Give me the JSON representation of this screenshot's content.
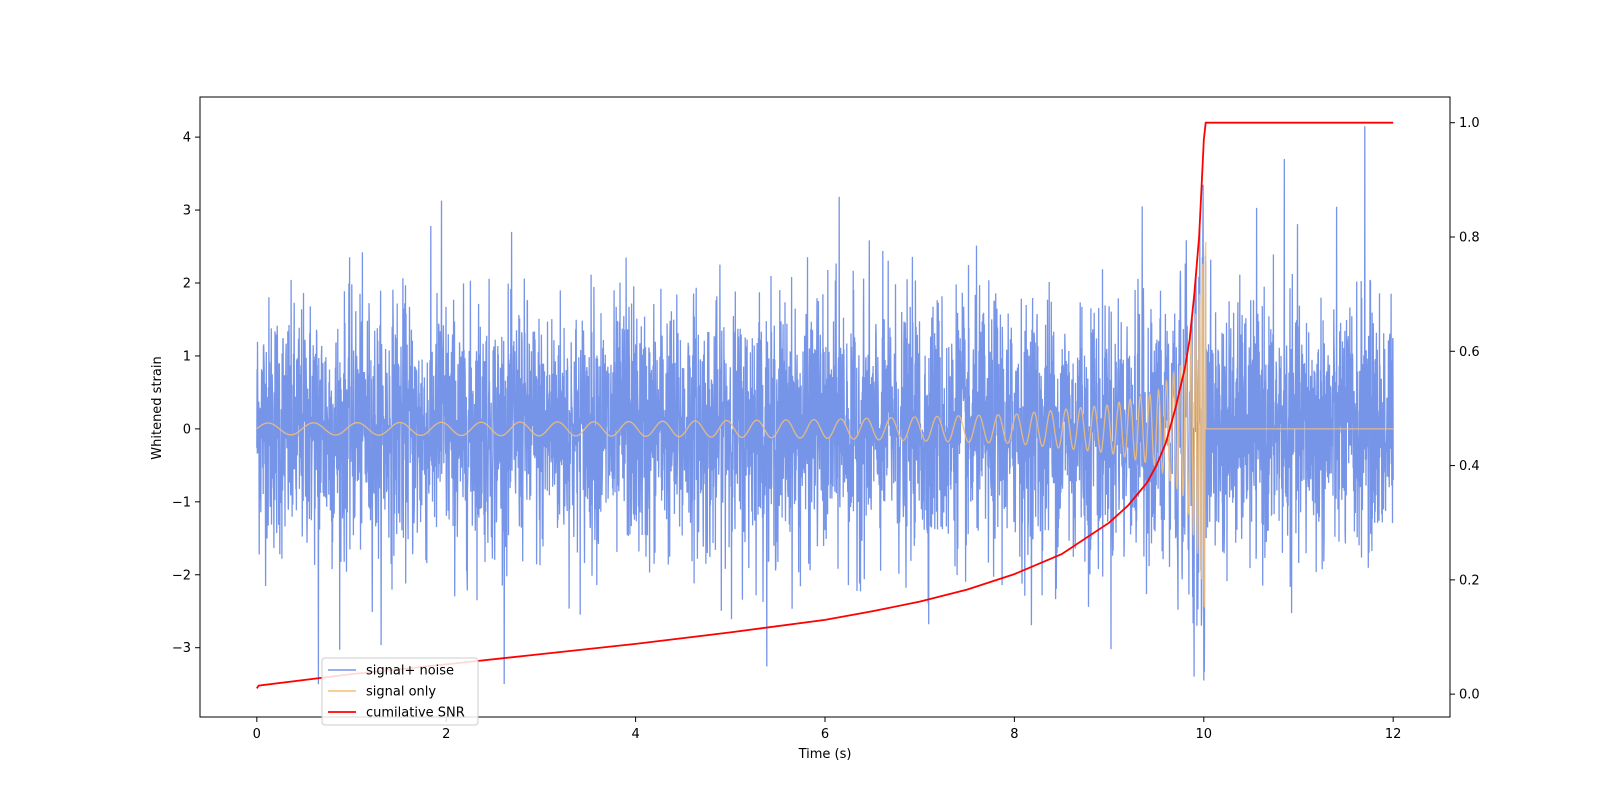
{
  "chart_data": {
    "type": "line",
    "title": "",
    "xlabel": "Time (s)",
    "ylabel": "Whitened strain",
    "y2label": "",
    "xlim": [
      -0.6,
      12.6
    ],
    "ylim": [
      -3.95,
      4.55
    ],
    "y2lim": [
      -0.04,
      1.045
    ],
    "x_ticks": [
      0,
      2,
      4,
      6,
      8,
      10,
      12
    ],
    "y_ticks": [
      -3,
      -2,
      -1,
      0,
      1,
      2,
      3,
      4
    ],
    "y2_ticks": [
      0.0,
      0.2,
      0.4,
      0.6,
      0.8,
      1.0
    ],
    "x_tick_labels": [
      "0",
      "2",
      "4",
      "6",
      "8",
      "10",
      "12"
    ],
    "y_tick_labels": [
      "−3",
      "−2",
      "−1",
      "0",
      "1",
      "2",
      "3",
      "4"
    ],
    "y2_tick_labels": [
      "0.0",
      "0.2",
      "0.4",
      "0.6",
      "0.8",
      "1.0"
    ],
    "grid": false,
    "legend_position": "lower-left",
    "duration_s": 12,
    "merger_time_s": 10.02,
    "series": [
      {
        "name": "signal+ noise",
        "axis": "left",
        "color": "#7795e8",
        "noise_std": 0.85,
        "approx_range": [
          -3.45,
          4.15
        ],
        "notable_peaks": [
          [
            0.65,
            -3.5
          ],
          [
            1.95,
            3.13
          ],
          [
            3.9,
            2.35
          ],
          [
            6.15,
            3.18
          ],
          [
            9.35,
            3.05
          ],
          [
            10.0,
            -3.45
          ],
          [
            10.85,
            3.7
          ],
          [
            11.7,
            4.15
          ]
        ]
      },
      {
        "name": "signal only",
        "axis": "left",
        "color": "#f5bf75",
        "envelope": [
          [
            0,
            0.08
          ],
          [
            2,
            0.09
          ],
          [
            4,
            0.1
          ],
          [
            6,
            0.13
          ],
          [
            8,
            0.2
          ],
          [
            9,
            0.33
          ],
          [
            9.5,
            0.5
          ],
          [
            9.8,
            0.95
          ],
          [
            9.95,
            1.8
          ],
          [
            10.02,
            2.62
          ],
          [
            10.03,
            0
          ],
          [
            12,
            0
          ]
        ]
      },
      {
        "name": "cumilative SNR",
        "axis": "right",
        "color": "#ff0000",
        "x": [
          0,
          0.02,
          1,
          2,
          3,
          4,
          5,
          6,
          6.5,
          7,
          7.5,
          8,
          8.5,
          9,
          9.2,
          9.4,
          9.5,
          9.6,
          9.7,
          9.8,
          9.85,
          9.9,
          9.95,
          9.98,
          10.0,
          10.02,
          12
        ],
        "values": [
          0.01,
          0.015,
          0.035,
          0.052,
          0.07,
          0.088,
          0.108,
          0.13,
          0.145,
          0.162,
          0.183,
          0.21,
          0.245,
          0.3,
          0.33,
          0.37,
          0.4,
          0.44,
          0.5,
          0.57,
          0.62,
          0.7,
          0.8,
          0.9,
          0.97,
          1.0,
          1.0
        ]
      }
    ]
  }
}
